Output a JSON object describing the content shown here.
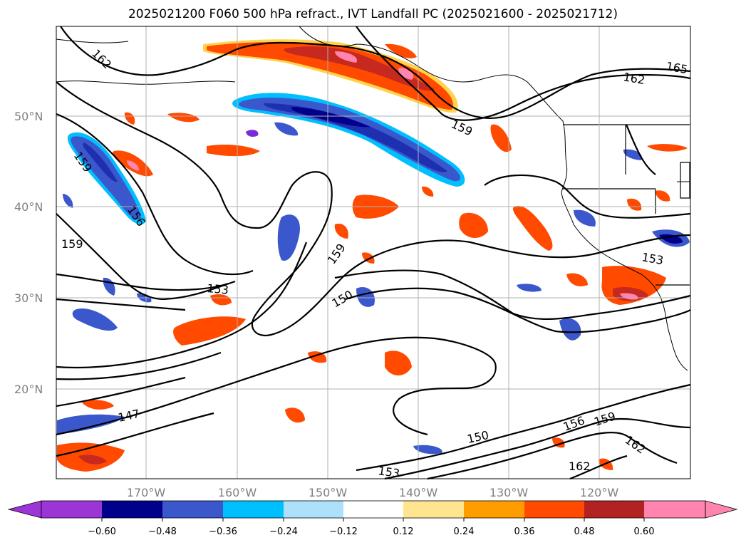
{
  "title": "2025021200 F060 500 hPa refract., IVT Landfall PC (2025021600 - 2025021712)",
  "lat_labels": [
    "50°N",
    "40°N",
    "30°N",
    "20°N"
  ],
  "lon_labels": [
    "170°W",
    "160°W",
    "150°W",
    "140°W",
    "130°W",
    "120°W"
  ],
  "contour_labels": [
    "162",
    "162",
    "165",
    "159",
    "159",
    "156",
    "159",
    "159",
    "153",
    "150",
    "153",
    "147",
    "153",
    "150",
    "156",
    "159",
    "162",
    "162"
  ],
  "colorbar": {
    "ticks": [
      "−0.60",
      "−0.48",
      "−0.36",
      "−0.24",
      "−0.12",
      "0.12",
      "0.24",
      "0.36",
      "0.48",
      "0.60"
    ],
    "colors": [
      "#9c35d6",
      "#00008b",
      "#3a58cc",
      "#00bfff",
      "#ade1fb",
      "#ffffff",
      "#ffe58f",
      "#ff9d00",
      "#ff4a00",
      "#b22222",
      "#ff85b0"
    ]
  },
  "fill_colors": {
    "neg_outer": "#3a64d0",
    "neg_mid": "#1e2fb0",
    "neg_inner": "#00008b",
    "neg_core": "#7a2ad6",
    "pos_edge": "#ffd34d",
    "pos_outer": "#ff4a00",
    "pos_mid": "#c8291e",
    "pos_inner": "#ff85b0"
  }
}
